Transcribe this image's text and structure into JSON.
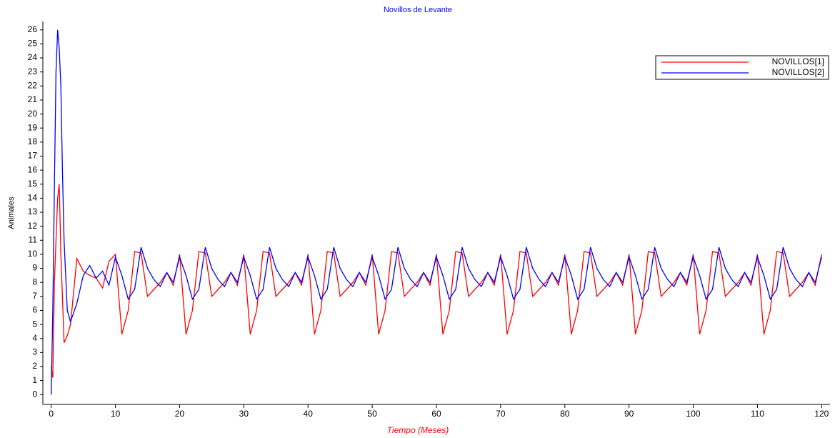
{
  "chart_data": {
    "type": "line",
    "title": "Novillos de Levante",
    "xlabel": "Tiempo (Meses)",
    "ylabel": "Animales",
    "x": [
      0,
      0.25,
      0.5,
      0.75,
      1,
      1.25,
      1.5,
      1.75,
      2,
      2.5,
      3,
      4,
      5,
      6,
      7,
      8,
      9,
      10,
      11,
      12,
      13,
      14,
      15,
      16,
      17,
      18,
      19,
      20,
      21,
      22,
      23,
      24,
      25,
      26,
      27,
      28,
      29,
      30,
      31,
      32,
      33,
      34,
      35,
      36,
      37,
      38,
      39,
      40,
      41,
      42,
      43,
      44,
      45,
      46,
      47,
      48,
      49,
      50,
      51,
      52,
      53,
      54,
      55,
      56,
      57,
      58,
      59,
      60,
      61,
      62,
      63,
      64,
      65,
      66,
      67,
      68,
      69,
      70,
      71,
      72,
      73,
      74,
      75,
      76,
      77,
      78,
      79,
      80,
      81,
      82,
      83,
      84,
      85,
      86,
      87,
      88,
      89,
      90,
      91,
      92,
      93,
      94,
      95,
      96,
      97,
      98,
      99,
      100,
      101,
      102,
      103,
      104,
      105,
      106,
      107,
      108,
      109,
      110,
      111,
      112,
      113,
      114,
      115,
      116,
      117,
      118,
      119,
      120
    ],
    "series": [
      {
        "name": "NOVILLOS[1]",
        "color": "#ff0000",
        "values": [
          2,
          1.2,
          8,
          11,
          14,
          15,
          10,
          7,
          3.7,
          4.2,
          5,
          9.7,
          8.8,
          8.5,
          8.3,
          7.6,
          9.5,
          10,
          4.3,
          6,
          10.2,
          10.1,
          7,
          7.5,
          8,
          8.7,
          7.8,
          10,
          4.3,
          6,
          10.2,
          10.1,
          7,
          7.5,
          8,
          8.7,
          7.8,
          10,
          4.3,
          6,
          10.2,
          10.1,
          7,
          7.5,
          8,
          8.7,
          7.8,
          10,
          4.3,
          6,
          10.2,
          10.1,
          7,
          7.5,
          8,
          8.7,
          7.8,
          10,
          4.3,
          6,
          10.2,
          10.1,
          7,
          7.5,
          8,
          8.7,
          7.8,
          10,
          4.3,
          6,
          10.2,
          10.1,
          7,
          7.5,
          8,
          8.7,
          7.8,
          10,
          4.3,
          6,
          10.2,
          10.1,
          7,
          7.5,
          8,
          8.7,
          7.8,
          10,
          4.3,
          6,
          10.2,
          10.1,
          7,
          7.5,
          8,
          8.7,
          7.8,
          10,
          4.3,
          6,
          10.2,
          10.1,
          7,
          7.5,
          8,
          8.7,
          7.8,
          10,
          4.3,
          6,
          10.2,
          10.1,
          7,
          7.5,
          8,
          8.7,
          7.8,
          10,
          4.3,
          6,
          10.2,
          10.1,
          7,
          7.5,
          8,
          8.7,
          7.8,
          10
        ]
      },
      {
        "name": "NOVILLOS[2]",
        "color": "#0000ff",
        "values": [
          0,
          6,
          15,
          23,
          26,
          24.7,
          22,
          16,
          11,
          6,
          5.2,
          6.5,
          8.5,
          9.2,
          8.3,
          8.8,
          7.8,
          9.8,
          8.5,
          6.8,
          7.5,
          10.5,
          9,
          8.2,
          7.7,
          8.7,
          8,
          9.8,
          8.5,
          6.8,
          7.5,
          10.5,
          9,
          8.2,
          7.7,
          8.7,
          8,
          9.8,
          8.5,
          6.8,
          7.5,
          10.5,
          9,
          8.2,
          7.7,
          8.7,
          8,
          9.8,
          8.5,
          6.8,
          7.5,
          10.5,
          9,
          8.2,
          7.7,
          8.7,
          8,
          9.8,
          8.5,
          6.8,
          7.5,
          10.5,
          9,
          8.2,
          7.7,
          8.7,
          8,
          9.8,
          8.5,
          6.8,
          7.5,
          10.5,
          9,
          8.2,
          7.7,
          8.7,
          8,
          9.8,
          8.5,
          6.8,
          7.5,
          10.5,
          9,
          8.2,
          7.7,
          8.7,
          8,
          9.8,
          8.5,
          6.8,
          7.5,
          10.5,
          9,
          8.2,
          7.7,
          8.7,
          8,
          9.8,
          8.5,
          6.8,
          7.5,
          10.5,
          9,
          8.2,
          7.7,
          8.7,
          8,
          9.8,
          8.5,
          6.8,
          7.5,
          10.5,
          9,
          8.2,
          7.7,
          8.7,
          8,
          9.8,
          8.5,
          6.8,
          7.5,
          10.5,
          9,
          8.2,
          7.7,
          8.7,
          8,
          9.8
        ]
      }
    ],
    "xlim": [
      -1.3,
      121.3
    ],
    "xticks": [
      0,
      10,
      20,
      30,
      40,
      50,
      60,
      70,
      80,
      90,
      100,
      110,
      120
    ],
    "ylim": [
      -0.7,
      26.6
    ],
    "yticks": [
      0,
      1,
      2,
      3,
      4,
      5,
      6,
      7,
      8,
      9,
      10,
      11,
      12,
      13,
      14,
      15,
      16,
      17,
      18,
      19,
      20,
      21,
      22,
      23,
      24,
      25,
      26
    ],
    "legend": "upper right"
  }
}
